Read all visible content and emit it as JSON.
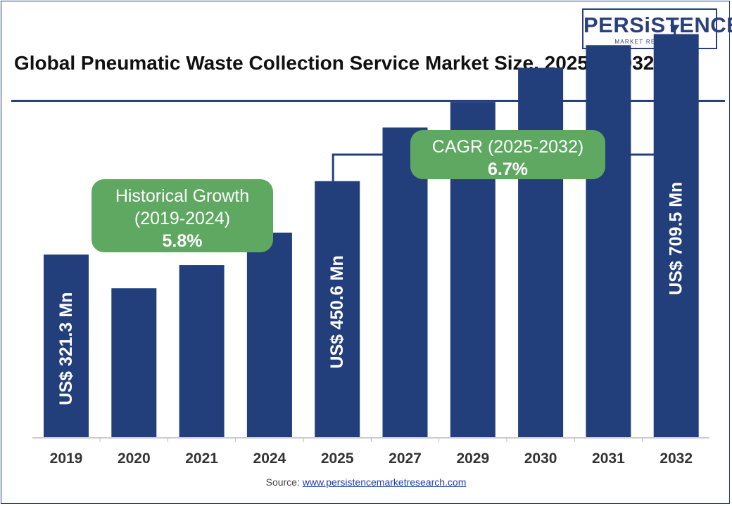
{
  "logo": {
    "wordmark": "PERSiSTENCE",
    "tagline": "MARKET RESEARCH"
  },
  "title": "Global Pneumatic Waste Collection Service Market Size, 2025 – 2032",
  "source": {
    "label": "Source:",
    "link_text": "www.persistencemarketresearch.com"
  },
  "colors": {
    "bar": "#223f7c",
    "callout": "#5fa862",
    "connector": "#223f7c",
    "axis": "#bbbbbb"
  },
  "chart_data": {
    "type": "bar",
    "title": "Global Pneumatic Waste Collection Service Market Size, 2025 – 2032",
    "xlabel": "",
    "ylabel": "",
    "categories": [
      "2019",
      "2020",
      "2021",
      "2024",
      "2025",
      "2027",
      "2029",
      "2030",
      "2031",
      "2032"
    ],
    "values": [
      321.3,
      262,
      303,
      360,
      450.6,
      545,
      590,
      650,
      690,
      709.5
    ],
    "units": "US$ Mn",
    "ylim": [
      0,
      720
    ],
    "grid": false,
    "legend": "none",
    "data_labels": [
      {
        "category": "2019",
        "text": "US$ 321.3 Mn"
      },
      {
        "category": "2025",
        "text": "US$ 450.6 Mn"
      },
      {
        "category": "2032",
        "text": "US$ 709.5 Mn"
      }
    ],
    "annotations": [
      {
        "id": "historical",
        "lines": [
          "Historical Growth",
          "(2019-2024)"
        ],
        "value": "5.8%"
      },
      {
        "id": "cagr",
        "lines": [
          "CAGR (2025-2032)"
        ],
        "value": "6.7%"
      }
    ]
  }
}
